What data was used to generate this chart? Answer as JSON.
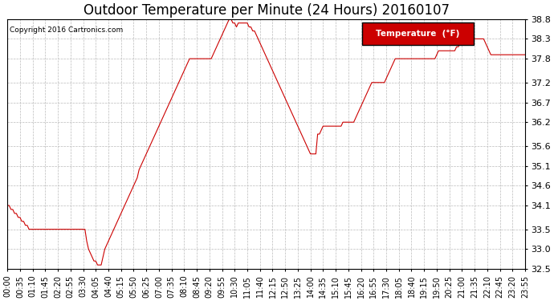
{
  "title": "Outdoor Temperature per Minute (24 Hours) 20160107",
  "copyright": "Copyright 2016 Cartronics.com",
  "legend_label": "Temperature  (°F)",
  "ylim": [
    32.5,
    38.8
  ],
  "yticks": [
    32.5,
    33.0,
    33.5,
    34.1,
    34.6,
    35.1,
    35.6,
    36.2,
    36.7,
    37.2,
    37.8,
    38.3,
    38.8
  ],
  "line_color": "#cc0000",
  "background_color": "#ffffff",
  "grid_color": "#bbbbbb",
  "title_fontsize": 12,
  "tick_fontsize": 7,
  "x_tick_interval": 7,
  "temperatures": [
    34.1,
    34.1,
    34.0,
    34.0,
    33.9,
    33.9,
    33.8,
    33.8,
    33.7,
    33.7,
    33.6,
    33.6,
    33.5,
    33.5,
    33.5,
    33.5,
    33.5,
    33.5,
    33.5,
    33.5,
    33.5,
    33.5,
    33.5,
    33.5,
    33.5,
    33.5,
    33.5,
    33.5,
    33.5,
    33.5,
    33.5,
    33.5,
    33.5,
    33.5,
    33.5,
    33.5,
    33.5,
    33.5,
    33.5,
    33.5,
    33.5,
    33.5,
    33.5,
    33.5,
    33.2,
    33.0,
    32.9,
    32.8,
    32.7,
    32.7,
    32.6,
    32.6,
    32.6,
    32.8,
    33.0,
    33.1,
    33.2,
    33.3,
    33.4,
    33.5,
    33.6,
    33.7,
    33.8,
    33.9,
    34.0,
    34.1,
    34.2,
    34.3,
    34.4,
    34.5,
    34.6,
    34.7,
    34.8,
    35.0,
    35.1,
    35.2,
    35.3,
    35.4,
    35.5,
    35.6,
    35.7,
    35.8,
    35.9,
    36.0,
    36.1,
    36.2,
    36.3,
    36.4,
    36.5,
    36.6,
    36.7,
    36.8,
    36.9,
    37.0,
    37.1,
    37.2,
    37.3,
    37.4,
    37.5,
    37.6,
    37.7,
    37.8,
    37.8,
    37.8,
    37.8,
    37.8,
    37.8,
    37.8,
    37.8,
    37.8,
    37.8,
    37.8,
    37.8,
    37.8,
    37.9,
    38.0,
    38.1,
    38.2,
    38.3,
    38.4,
    38.5,
    38.6,
    38.7,
    38.8,
    38.8,
    38.7,
    38.7,
    38.6,
    38.7,
    38.7,
    38.7,
    38.7,
    38.7,
    38.7,
    38.6,
    38.6,
    38.5,
    38.5,
    38.4,
    38.3,
    38.2,
    38.1,
    38.0,
    37.9,
    37.8,
    37.7,
    37.6,
    37.5,
    37.4,
    37.3,
    37.2,
    37.1,
    37.0,
    36.9,
    36.8,
    36.7,
    36.6,
    36.5,
    36.4,
    36.3,
    36.2,
    36.1,
    36.0,
    35.9,
    35.8,
    35.7,
    35.6,
    35.5,
    35.4,
    35.4,
    35.4,
    35.4,
    35.9,
    35.9,
    36.0,
    36.1,
    36.1,
    36.1,
    36.1,
    36.1,
    36.1,
    36.1,
    36.1,
    36.1,
    36.1,
    36.1,
    36.2,
    36.2,
    36.2,
    36.2,
    36.2,
    36.2,
    36.2,
    36.3,
    36.4,
    36.5,
    36.6,
    36.7,
    36.8,
    36.9,
    37.0,
    37.1,
    37.2,
    37.2,
    37.2,
    37.2,
    37.2,
    37.2,
    37.2,
    37.2,
    37.3,
    37.4,
    37.5,
    37.6,
    37.7,
    37.8,
    37.8,
    37.8,
    37.8,
    37.8,
    37.8,
    37.8,
    37.8,
    37.8,
    37.8,
    37.8,
    37.8,
    37.8,
    37.8,
    37.8,
    37.8,
    37.8,
    37.8,
    37.8,
    37.8,
    37.8,
    37.8,
    37.8,
    37.9,
    38.0,
    38.0,
    38.0,
    38.0,
    38.0,
    38.0,
    38.0,
    38.0,
    38.0,
    38.0,
    38.1,
    38.1,
    38.2,
    38.3,
    38.3,
    38.3,
    38.3,
    38.3,
    38.3,
    38.3,
    38.3,
    38.3,
    38.3,
    38.3,
    38.3,
    38.3,
    38.2,
    38.1,
    38.0,
    37.9,
    37.9,
    37.9,
    37.9,
    37.9,
    37.9,
    37.9,
    37.9,
    37.9,
    37.9,
    37.9,
    37.9,
    37.9,
    37.9,
    37.9,
    37.9,
    37.9,
    37.9,
    37.9,
    37.9
  ]
}
